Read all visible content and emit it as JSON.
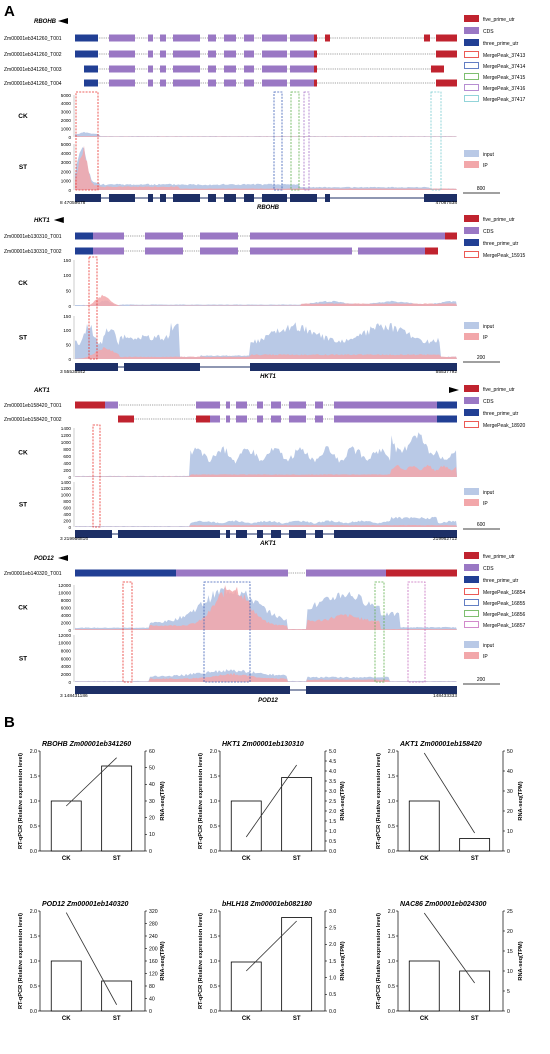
{
  "panel_labels": {
    "a": "A",
    "b": "B"
  },
  "legend_labels": {
    "five_prime": "five_prime_utr",
    "cds": "CDS",
    "three_prime": "three_prime_utr",
    "input": "input",
    "ip": "IP"
  },
  "colors": {
    "five_prime": "#c0232f",
    "cds": "#9a78c4",
    "three_prime": "#213f94",
    "input": "#b9c9e6",
    "ip": "#f2a7aa",
    "genome_bar": "#1d2f66"
  },
  "track_labels": {
    "ck": "CK",
    "st": "ST"
  },
  "chart_data": [
    {
      "type": "area",
      "title": "RBOHB",
      "transcripts": [
        "Zm00001eb341260_T001",
        "Zm00001eb341260_T002",
        "Zm00001eb341260_T003",
        "Zm00001eb341260_T004"
      ],
      "peaks": [
        {
          "name": "MergePeak_37413",
          "color": "#e8312c"
        },
        {
          "name": "MergePeak_37414",
          "color": "#3d5fb6"
        },
        {
          "name": "MergePeak_37415",
          "color": "#5fb04d"
        },
        {
          "name": "MergePeak_37416",
          "color": "#a672c8"
        },
        {
          "name": "MergePeak_37417",
          "color": "#78cad0"
        }
      ],
      "ck_ticks": [
        "5000",
        "4000",
        "3000",
        "2000",
        "1000",
        "0"
      ],
      "st_ticks": [
        "5000",
        "4000",
        "3000",
        "2000",
        "1000",
        "0"
      ],
      "ylim": [
        0,
        5000
      ],
      "coord_start": "47059678",
      "coord_end": "47087538",
      "scale_label": "800",
      "axis_prefix": "8"
    },
    {
      "type": "area",
      "title": "HKT1",
      "transcripts": [
        "Zm00001eb130310_T001",
        "Zm00001eb130310_T002"
      ],
      "peaks": [
        {
          "name": "MergePeak_15915",
          "color": "#e8312c"
        }
      ],
      "ck_ticks": [
        "150",
        "100",
        "50",
        "0"
      ],
      "st_ticks": [
        "150",
        "100",
        "50",
        "0"
      ],
      "ylim": [
        0,
        150
      ],
      "coord_start": "55535542",
      "coord_end": "55537792",
      "scale_label": "200",
      "axis_prefix": "3"
    },
    {
      "type": "area",
      "title": "AKT1",
      "transcripts": [
        "Zm00001eb158420_T001",
        "Zm00001eb158420_T002"
      ],
      "peaks": [
        {
          "name": "MergePeak_18920",
          "color": "#e8312c"
        }
      ],
      "ck_ticks": [
        "1400",
        "1200",
        "1000",
        "800",
        "600",
        "400",
        "200",
        "0"
      ],
      "st_ticks": [
        "1400",
        "1200",
        "1000",
        "800",
        "600",
        "400",
        "200",
        "0"
      ],
      "ylim": [
        0,
        1400
      ],
      "coord_start": "219956816",
      "coord_end": "219962712",
      "scale_label": "600",
      "axis_prefix": "3"
    },
    {
      "type": "area",
      "title": "POD12",
      "transcripts": [
        "Zm00001eb140320_T001"
      ],
      "peaks": [
        {
          "name": "MergePeak_16854",
          "color": "#e8312c"
        },
        {
          "name": "MergePeak_16855",
          "color": "#3d5fb6"
        },
        {
          "name": "MergePeak_16856",
          "color": "#5fb04d"
        },
        {
          "name": "MergePeak_16857",
          "color": "#c76fbf"
        }
      ],
      "ck_ticks": [
        "12000",
        "10000",
        "8000",
        "6000",
        "4000",
        "2000",
        "0"
      ],
      "st_ticks": [
        "12000",
        "10000",
        "8000",
        "6000",
        "4000",
        "2000",
        "0"
      ],
      "ylim": [
        0,
        12000
      ],
      "coord_start": "148431186",
      "coord_end": "148433333",
      "scale_label": "200",
      "axis_prefix": "3"
    },
    {
      "type": "bar",
      "title_gene": "RBOHB",
      "title_id": "Zm00001eb341260",
      "categories": [
        "CK",
        "ST"
      ],
      "values": [
        1.0,
        1.7
      ],
      "ylim": [
        0,
        2.0
      ],
      "ylabel": "RT-qPCR (Relative expression level)",
      "y2label": "RNA-seq(TPM)",
      "y2lim": [
        0,
        60
      ],
      "y2_ticks": [
        0,
        10,
        20,
        30,
        40,
        50,
        60
      ],
      "line_values": [
        27,
        56
      ]
    },
    {
      "type": "bar",
      "title_gene": "HKT1",
      "title_id": "Zm00001eb130310",
      "categories": [
        "CK",
        "ST"
      ],
      "values": [
        1.0,
        1.47
      ],
      "ylim": [
        0,
        2.0
      ],
      "ylabel": "RT-qPCR (Relative expression level)",
      "y2label": "RNA-seq(TPM)",
      "y2lim": [
        0,
        5
      ],
      "y2_ticks": [
        "0.0",
        "0.5",
        "1.0",
        "1.5",
        "2.0",
        "2.5",
        "3.0",
        "3.5",
        "4.0",
        "4.5",
        "5.0"
      ],
      "line_values": [
        0.7,
        4.3
      ]
    },
    {
      "type": "bar",
      "title_gene": "AKT1",
      "title_id": "Zm00001eb158420",
      "categories": [
        "CK",
        "ST"
      ],
      "values": [
        1.0,
        0.25
      ],
      "ylim": [
        0,
        2.0
      ],
      "ylabel": "RT-qPCR (Relative expression level)",
      "y2label": "RNA-seq(TPM)",
      "y2lim": [
        0,
        50
      ],
      "y2_ticks": [
        0,
        10,
        20,
        30,
        40,
        50
      ],
      "line_values": [
        49,
        9
      ]
    },
    {
      "type": "bar",
      "title_gene": "POD12",
      "title_id": "Zm00001eb140320",
      "categories": [
        "CK",
        "ST"
      ],
      "values": [
        1.0,
        0.6
      ],
      "ylim": [
        0,
        2.0
      ],
      "ylabel": "RT-qPCR (Relative expression level)",
      "y2label": "RNA-seq(TPM)",
      "y2lim": [
        0,
        320
      ],
      "y2_ticks": [
        0,
        40,
        80,
        120,
        160,
        200,
        240,
        280,
        320
      ],
      "line_values": [
        315,
        20
      ]
    },
    {
      "type": "bar",
      "title_gene": "bHLH18",
      "title_id": "Zm00001eb082180",
      "categories": [
        "CK",
        "ST"
      ],
      "values": [
        0.98,
        1.87
      ],
      "ylim": [
        0,
        2.0
      ],
      "ylabel": "RT-qPCR (Relative expression level)",
      "y2label": "RNA-seq(TPM)",
      "y2lim": [
        0,
        3
      ],
      "y2_ticks": [
        "0.0",
        "0.5",
        "1.0",
        "1.5",
        "2.0",
        "2.5",
        "3.0"
      ],
      "line_values": [
        1.2,
        2.7
      ]
    },
    {
      "type": "bar",
      "title_gene": "NAC86",
      "title_id": "Zm00001eb024300",
      "categories": [
        "CK",
        "ST"
      ],
      "values": [
        1.0,
        0.8
      ],
      "ylim": [
        0,
        2.0
      ],
      "ylabel": "RT-qPCR (Relative expression level)",
      "y2label": "RNA-seq(TPM)",
      "y2lim": [
        0,
        25
      ],
      "y2_ticks": [
        0,
        5,
        10,
        15,
        20,
        25
      ],
      "line_values": [
        24.5,
        7
      ]
    }
  ]
}
